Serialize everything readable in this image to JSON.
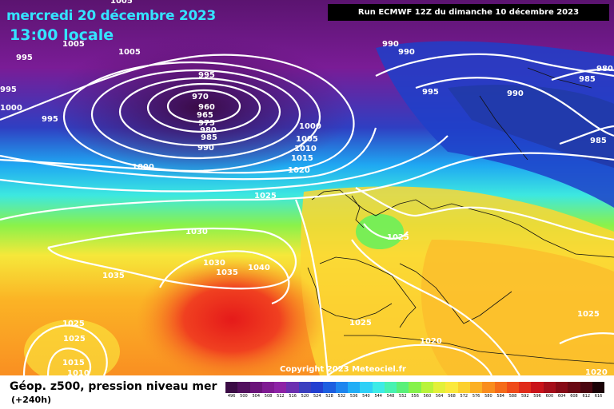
{
  "header": {
    "date": "mercredi 20 décembre 2023",
    "time": "13:00 locale",
    "run": "Run ECMWF 12Z du dimanche 10 décembre 2023"
  },
  "copyright": "Copyright 2023 Meteociel.fr",
  "footer": {
    "parameter": "Géop. z500, pression niveau mer",
    "lead_time": "(+240h)"
  },
  "isobars": [
    "1005",
    "1005",
    "1005",
    "995",
    "995",
    "1000",
    "995",
    "970",
    "960",
    "965",
    "975",
    "980",
    "985",
    "990",
    "995",
    "1000",
    "1005",
    "1010",
    "1015",
    "1020",
    "1025",
    "1000",
    "990",
    "990",
    "995",
    "990",
    "985",
    "980",
    "985",
    "1025",
    "1030",
    "1035",
    "1030",
    "1035",
    "1040",
    "1025",
    "1020",
    "1025",
    "1015",
    "1010",
    "1025",
    "1025",
    "1020"
  ],
  "scale": {
    "labels": [
      "496",
      "500",
      "504",
      "508",
      "512",
      "516",
      "520",
      "524",
      "528",
      "532",
      "536",
      "540",
      "544",
      "548",
      "552",
      "556",
      "560",
      "564",
      "568",
      "572",
      "576",
      "580",
      "584",
      "588",
      "592",
      "596",
      "600",
      "604",
      "608",
      "612",
      "616"
    ],
    "colors": [
      "#3b0b45",
      "#52105e",
      "#6a1379",
      "#7f1a92",
      "#8d22a6",
      "#6b2fb0",
      "#3b3fbf",
      "#233fd0",
      "#1d5fe0",
      "#1e86ef",
      "#21aef6",
      "#2fd0f7",
      "#3eebe7",
      "#48f2b2",
      "#59f07a",
      "#86f24a",
      "#b9f33a",
      "#e3f03a",
      "#fbe93d",
      "#fcd02f",
      "#fbb025",
      "#f98d1e",
      "#f56b1a",
      "#ef4a19",
      "#e02b1a",
      "#c9131a",
      "#a50e1a",
      "#860a16",
      "#690813",
      "#4a0610",
      "#1a0206"
    ]
  }
}
